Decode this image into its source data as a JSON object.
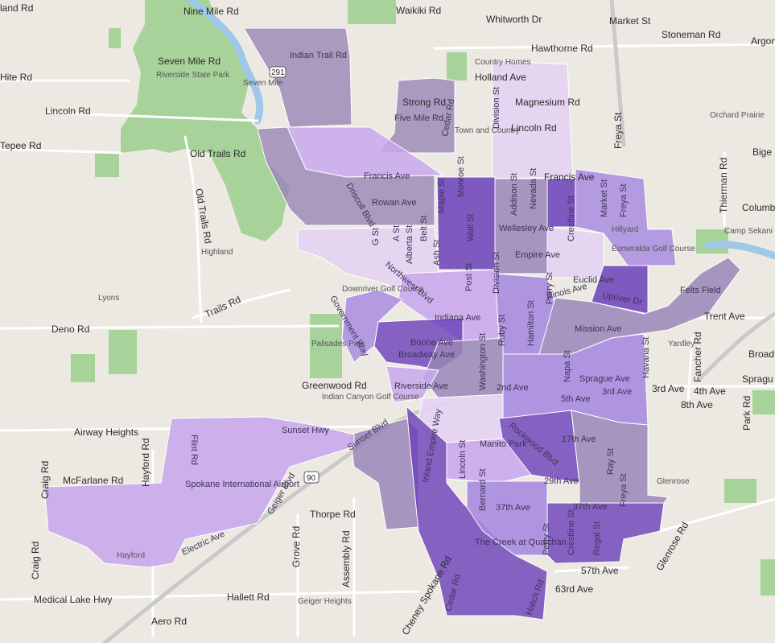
{
  "map": {
    "colors": {
      "background": "#ece9e2",
      "park": "#a7d29a",
      "water": "#9fc8e8",
      "major_road": "#ffffff",
      "highway": "#c9c9c9",
      "purple_1": "#e4d3f2",
      "purple_2": "#c9a8ec",
      "purple_3": "#a98ce0",
      "purple_4": "#9a86b8",
      "purple_5": "#7e5ad0",
      "purple_6": "#6b3fb9"
    },
    "roads": {
      "nine_mile_rd": "Nine Mile Rd",
      "waikiki_rd": "Waikiki Rd",
      "whitworth_dr": "Whitworth Dr",
      "hawthorne_rd": "Hawthorne Rd",
      "market_st_n": "Market St",
      "stoneman_rd": "Stoneman Rd",
      "argonne_rd": "Argonne Rd",
      "indian_trail_rd": "Indian Trail Rd",
      "hite_rd": "Hite Rd",
      "lincoln_rd_w": "Lincoln Rd",
      "tepee_rd": "Tepee Rd",
      "old_trails_rd": "Old Trails Rd",
      "seven_mile_rd": "Seven Mile Rd",
      "holland_ave": "Holland Ave",
      "magnesium_rd": "Magnesium Rd",
      "lincoln_rd_n": "Lincoln Rd",
      "strong_rd": "Strong Rd",
      "five_mile_rd": "Five Mile Rd",
      "cedar_rd_n": "Cedar Rd",
      "division_st_n": "Division St",
      "freya_st_n": "Freya St",
      "francis_ave_w": "Francis Ave",
      "francis_ave_e": "Francis Ave",
      "rowan_ave": "Rowan Ave",
      "driscoll_blvd": "Driscoll Blvd",
      "maple_st": "Maple St",
      "monroe_st": "Monroe St",
      "wall_st": "Wall St",
      "addison_st": "Addison St",
      "nevada_st": "Nevada St",
      "wellesley_ave": "Wellesley Ave",
      "crestline_st_n": "Crestline St",
      "market_st": "Market St",
      "freya_st": "Freya St",
      "hillyard": "Hillyard",
      "esmeralda": "Esmeralda Golf Course",
      "thierman_rd": "Thierman Rd",
      "columbia": "Columb",
      "bigelow": "Bige",
      "orchard_prairie": "Orchard Prairie",
      "camp_sekani": "Camp Sekani Park",
      "g_st": "G St",
      "a_st": "A St",
      "alberta_st": "Alberta St",
      "belt_st": "Belt St",
      "ash_st": "Ash St",
      "highland": "Highland",
      "northwest_blvd": "Northwest Blvd",
      "downriver": "Downriver Golf Course",
      "empire_ave": "Empire Ave",
      "euclid_ave": "Euclid Ave",
      "post_st": "Post St",
      "division_st": "Division St",
      "illinois_ave": "Illinois Ave",
      "perry_st_n": "Perry St",
      "upriver_dr": "Upriver Dr",
      "felts_field": "Felts Field",
      "trent_ave": "Trent Ave",
      "lyons": "Lyons",
      "trails_rd": "Trails Rd",
      "deno_rd": "Deno Rd",
      "government_way": "Government Way",
      "indiana_ave": "Indiana Ave",
      "hamilton_st": "Hamilton St",
      "ruby_st": "Ruby St",
      "mission_ave": "Mission Ave",
      "boone_ave": "Boone Ave",
      "broadway_ave": "Broadway Ave",
      "washington_st": "Washington St",
      "napa_st": "Napa St",
      "havana_st": "Havana St",
      "yardley": "Yardley",
      "fancher_rd": "Fancher Rd",
      "broadway_e": "Broad",
      "palisades_park": "Palisades Park",
      "greenwood_rd": "Greenwood Rd",
      "indian_canyon": "Indian Canyon Golf Course",
      "riverside_ave": "Riverside Ave",
      "second_ave": "2nd Ave",
      "sprague_ave": "Sprague Ave",
      "sprague_e": "Spragu",
      "fifth_ave": "5th Ave",
      "third_ave": "3rd Ave",
      "third_ave_e": "3rd Ave",
      "fourth_ave": "4th Ave",
      "eighth_ave": "8th Ave",
      "park_rd": "Park Rd",
      "airway_heights": "Airway Heights",
      "flint_rd": "Flint Rd",
      "hayford_rd": "Hayford Rd",
      "sunset_hwy": "Sunset Hwy",
      "sunset_blvd": "Sunset Blvd",
      "inland_empire_way": "Inland Empire Way",
      "manito_park": "Manito Park",
      "rockwood_blvd": "Rockwood Blvd",
      "seventeenth_ave": "17th Ave",
      "craig_rd_n": "Craig Rd",
      "mcfarlane_rd": "McFarlane Rd",
      "spokane_airport": "Spokane International Airport",
      "geiger_blvd": "Geiger Blvd",
      "interstate_90": "90",
      "thorpe_rd": "Thorpe Rd",
      "lincoln_st": "Lincoln St",
      "bernard_st": "Bernard St",
      "twentyninth_ave": "29th Ave",
      "ray_st": "Ray St",
      "glenrose": "Glenrose",
      "thirtyseventh_ave": "37th Ave",
      "thirtyseventh_ave_e": "37th Ave",
      "freya_st_s": "Freya St",
      "perry_st_s": "Perry St",
      "crestline_st": "Crestline St",
      "regal_st": "Regal St",
      "glenrose_rd": "Glenrose Rd",
      "electric_ave": "Electric Ave",
      "grove_rd": "Grove Rd",
      "assembly_rd": "Assembly Rd",
      "hayford": "Hayford",
      "the_creek": "The Creek at Qualchan",
      "fiftyseventh_ave": "57th Ave",
      "sixtythird_ave": "63rd Ave",
      "craig_rd_s": "Craig Rd",
      "medical_lake_hwy": "Medical Lake Hwy",
      "hallett_rd": "Hallett Rd",
      "geiger_heights": "Geiger Heights",
      "cheney_spokane_rd": "Cheney Spokane Rd",
      "cedar_rd_s": "Cedar Rd",
      "hatch_rd": "Hatch Rd",
      "aero_rd": "Aero Rd",
      "town_and_country": "Town and Country",
      "country_homes": "Country Homes",
      "riverside_state_park": "Riverside State Park",
      "seven_mile": "Seven Mile",
      "land_rd": "land Rd",
      "hwy_291": "291"
    }
  }
}
